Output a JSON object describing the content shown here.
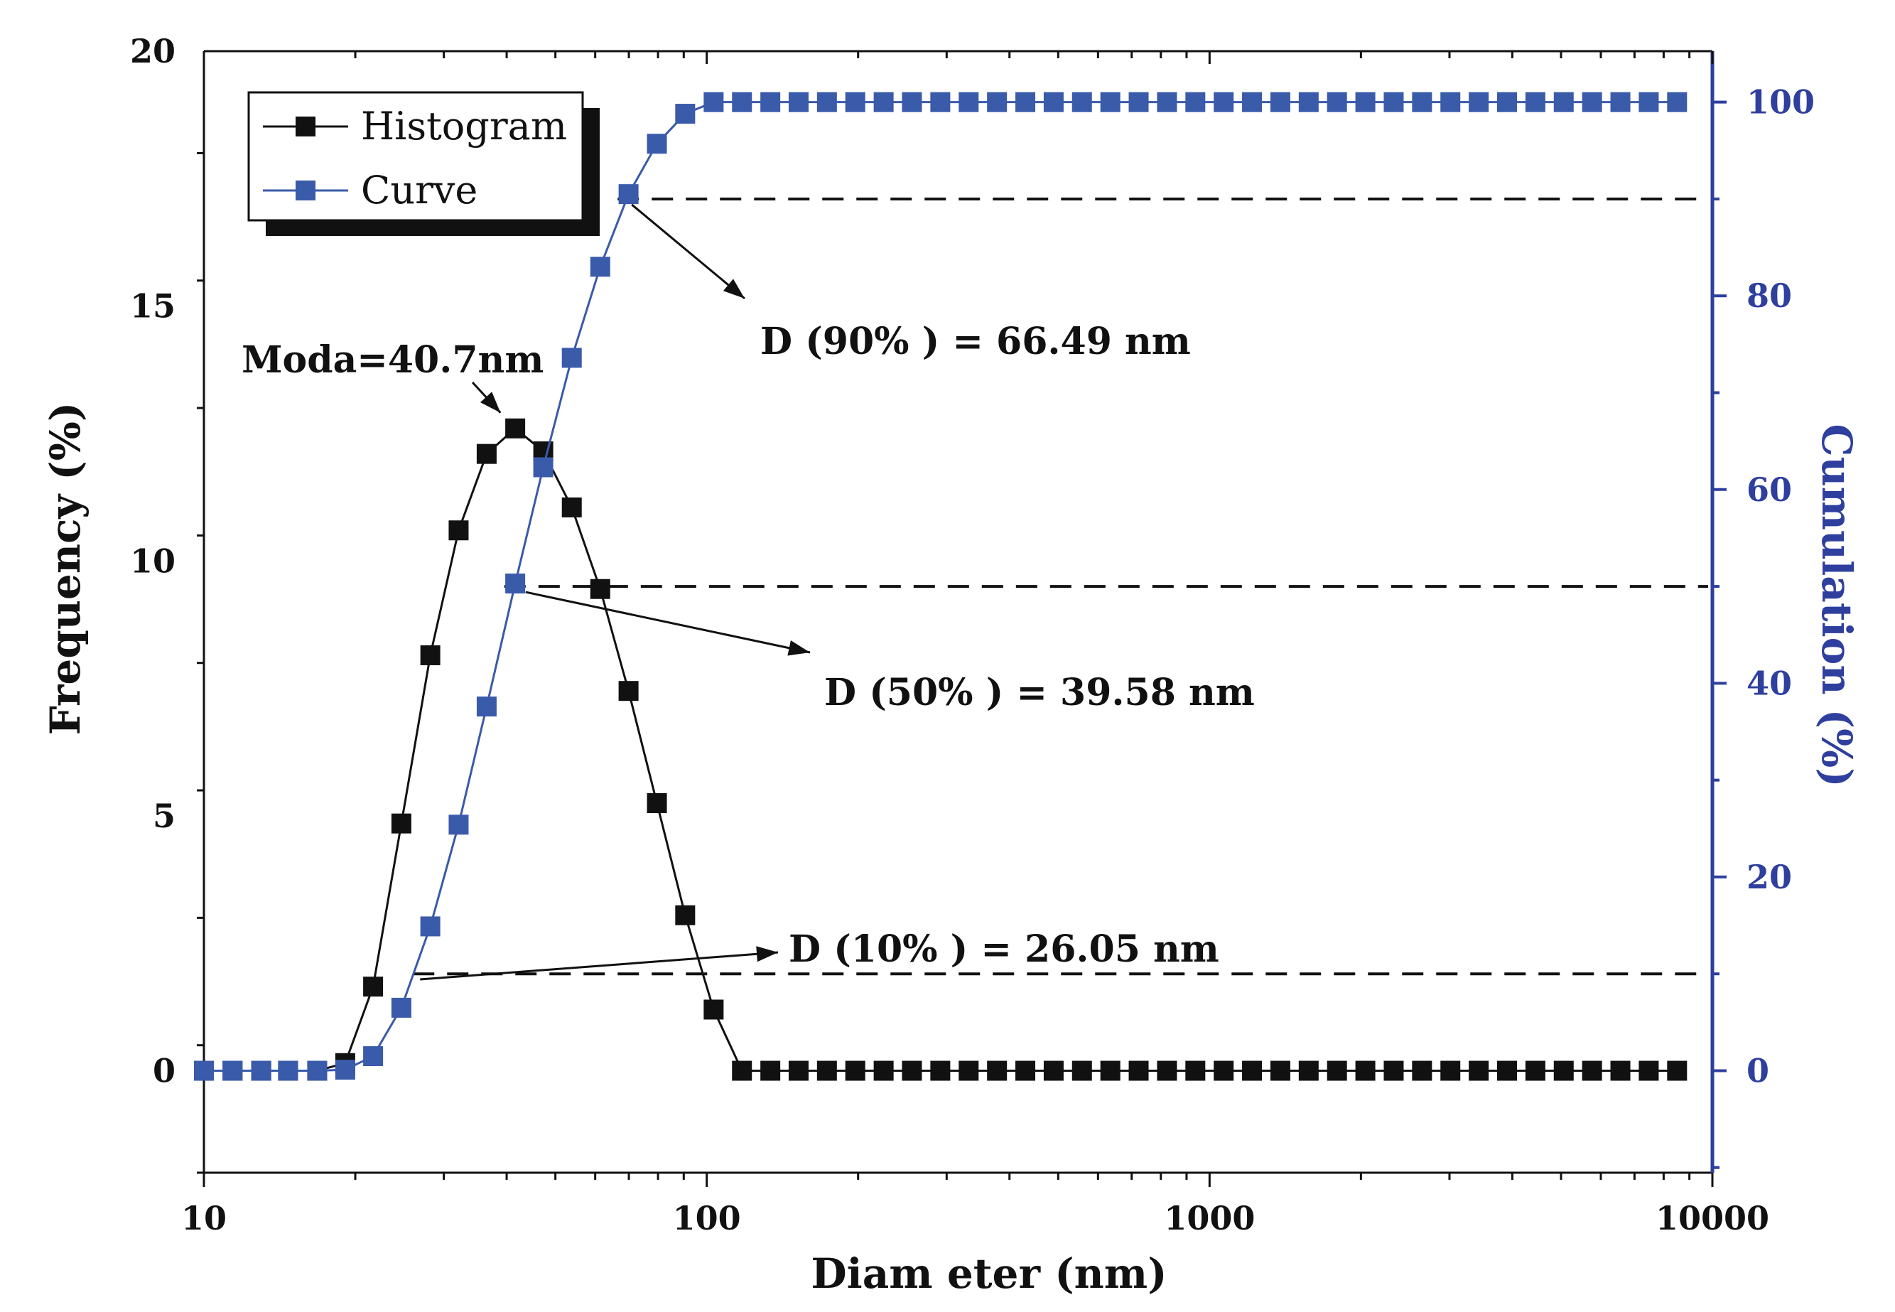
{
  "chart_data": {
    "type": "line",
    "xlabel": "Diam eter (nm)",
    "ylabel": "Frequency (%)",
    "y2label": "Cumulation (%)",
    "x_scale": "log",
    "xlim": [
      10,
      10000
    ],
    "ylim": [
      -2,
      20
    ],
    "y2lim": [
      -10.53,
      105.26
    ],
    "x_ticks": [
      10,
      100,
      1000,
      10000
    ],
    "x_tick_labels": [
      "10",
      "100",
      "1000",
      "10000"
    ],
    "y_ticks": [
      0,
      5,
      10,
      15,
      20
    ],
    "y_tick_labels": [
      "0",
      "5",
      "10",
      "15",
      "20"
    ],
    "y2_ticks": [
      0,
      20,
      40,
      60,
      80,
      100
    ],
    "y2_tick_labels": [
      "0",
      "20",
      "40",
      "60",
      "80",
      "100"
    ],
    "grid": false,
    "legend_position": "top-left",
    "colors": {
      "histogram": "#111111",
      "curve": "#3a5aaa",
      "axis_right": "#2e3f9e"
    },
    "series": [
      {
        "name": "Histogram",
        "axis": "left",
        "color": "#111111",
        "x": [
          10.0,
          11.4,
          13.0,
          14.7,
          16.8,
          19.1,
          21.7,
          24.7,
          28.2,
          32.1,
          36.5,
          41.6,
          47.3,
          53.9,
          61.4,
          69.9,
          79.6,
          90.6,
          103.2,
          117.5,
          133.8,
          152.3,
          173.4,
          197.4,
          224.8,
          255.9,
          291.4,
          331.8,
          377.8,
          430.1,
          489.7,
          557.5,
          634.8,
          722.7,
          822.9,
          936.9,
          1066.7,
          1214.5,
          1382.7,
          1574.4,
          1792.5,
          2040.9,
          2323.7,
          2645.7,
          3012.3,
          3429.7,
          3904.9,
          4446.0,
          5062.1,
          5763.6,
          6562.2,
          7471.5,
          8506.9
        ],
        "values": [
          0,
          0,
          0,
          0,
          0,
          0.15,
          1.65,
          4.85,
          8.15,
          10.6,
          12.1,
          12.6,
          12.15,
          11.05,
          9.45,
          7.45,
          5.25,
          3.05,
          1.2,
          0,
          0,
          0,
          0,
          0,
          0,
          0,
          0,
          0,
          0,
          0,
          0,
          0,
          0,
          0,
          0,
          0,
          0,
          0,
          0,
          0,
          0,
          0,
          0,
          0,
          0,
          0,
          0,
          0,
          0,
          0,
          0,
          0,
          0
        ]
      },
      {
        "name": "Curve",
        "axis": "right",
        "color": "#3a5aaa",
        "x": [
          10.0,
          11.4,
          13.0,
          14.7,
          16.8,
          19.1,
          21.7,
          24.7,
          28.2,
          32.1,
          36.5,
          41.6,
          47.3,
          53.9,
          61.4,
          69.9,
          79.6,
          90.6,
          103.2,
          117.5,
          133.8,
          152.3,
          173.4,
          197.4,
          224.8,
          255.9,
          291.4,
          331.8,
          377.8,
          430.1,
          489.7,
          557.5,
          634.8,
          722.7,
          822.9,
          936.9,
          1066.7,
          1214.5,
          1382.7,
          1574.4,
          1792.5,
          2040.9,
          2323.7,
          2645.7,
          3012.3,
          3429.7,
          3904.9,
          4446.0,
          5062.1,
          5763.6,
          6562.2,
          7471.5,
          8506.9
        ],
        "values": [
          0,
          0,
          0,
          0,
          0,
          0.1,
          1.5,
          6.5,
          14.9,
          25.4,
          37.6,
          50.3,
          62.3,
          73.6,
          83.0,
          90.5,
          95.7,
          98.8,
          100,
          100,
          100,
          100,
          100,
          100,
          100,
          100,
          100,
          100,
          100,
          100,
          100,
          100,
          100,
          100,
          100,
          100,
          100,
          100,
          100,
          100,
          100,
          100,
          100,
          100,
          100,
          100,
          100,
          100,
          100,
          100,
          100,
          100,
          100
        ]
      }
    ],
    "reference_lines": [
      {
        "axis": "right",
        "value": 90,
        "x_from": 66.49,
        "label": "D (90% ) = 66.49 nm"
      },
      {
        "axis": "right",
        "value": 50,
        "x_from": 39.58,
        "label": "D (50% ) = 39.58 nm"
      },
      {
        "axis": "right",
        "value": 10,
        "x_from": 26.05,
        "label": "D (10% ) = 26.05 nm"
      }
    ],
    "annotations": [
      {
        "text": "Moda=40.7nm",
        "points_to_x": 40.7,
        "points_to_y": 12.6
      }
    ]
  }
}
